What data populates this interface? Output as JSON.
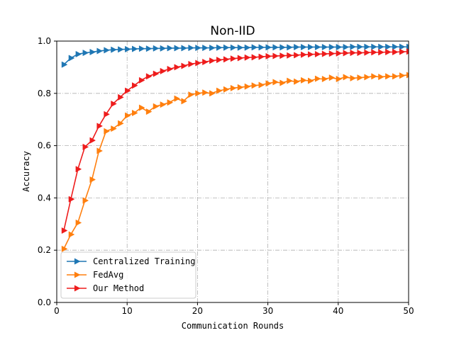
{
  "chart_data": {
    "type": "line",
    "title": "Non-IID",
    "xlabel": "Communication Rounds",
    "ylabel": "Accuracy",
    "xlim": [
      0,
      50
    ],
    "ylim": [
      0,
      1.0
    ],
    "xticks": [
      0,
      10,
      20,
      30,
      40,
      50
    ],
    "yticks": [
      0.0,
      0.2,
      0.4,
      0.6,
      0.8,
      1.0
    ],
    "xtick_labels": [
      "0",
      "10",
      "20",
      "30",
      "40",
      "50"
    ],
    "ytick_labels": [
      "0.0",
      "0.2",
      "0.4",
      "0.6",
      "0.8",
      "1.0"
    ],
    "grid": true,
    "legend_position": "lower-left",
    "marker": "right-triangle",
    "x": [
      1,
      2,
      3,
      4,
      5,
      6,
      7,
      8,
      9,
      10,
      11,
      12,
      13,
      14,
      15,
      16,
      17,
      18,
      19,
      20,
      21,
      22,
      23,
      24,
      25,
      26,
      27,
      28,
      29,
      30,
      31,
      32,
      33,
      34,
      35,
      36,
      37,
      38,
      39,
      40,
      41,
      42,
      43,
      44,
      45,
      46,
      47,
      48,
      49,
      50
    ],
    "series": [
      {
        "name": "Centralized Training",
        "color": "#1f77b4",
        "values": [
          0.91,
          0.935,
          0.95,
          0.955,
          0.958,
          0.962,
          0.965,
          0.967,
          0.968,
          0.969,
          0.97,
          0.971,
          0.971,
          0.972,
          0.972,
          0.973,
          0.973,
          0.973,
          0.974,
          0.974,
          0.974,
          0.974,
          0.975,
          0.975,
          0.975,
          0.975,
          0.975,
          0.976,
          0.976,
          0.976,
          0.976,
          0.976,
          0.976,
          0.977,
          0.977,
          0.977,
          0.977,
          0.977,
          0.977,
          0.977,
          0.977,
          0.978,
          0.978,
          0.978,
          0.978,
          0.978,
          0.978,
          0.978,
          0.978,
          0.978
        ]
      },
      {
        "name": "FedAvg",
        "color": "#ff7f0e",
        "values": [
          0.205,
          0.26,
          0.305,
          0.39,
          0.47,
          0.58,
          0.655,
          0.665,
          0.685,
          0.715,
          0.725,
          0.745,
          0.73,
          0.75,
          0.757,
          0.765,
          0.78,
          0.77,
          0.795,
          0.8,
          0.803,
          0.8,
          0.81,
          0.815,
          0.82,
          0.823,
          0.826,
          0.83,
          0.832,
          0.838,
          0.843,
          0.84,
          0.848,
          0.845,
          0.85,
          0.848,
          0.856,
          0.855,
          0.86,
          0.855,
          0.862,
          0.858,
          0.86,
          0.862,
          0.865,
          0.863,
          0.865,
          0.865,
          0.868,
          0.87
        ]
      },
      {
        "name": "Our Method",
        "color": "#ee1c1c",
        "values": [
          0.275,
          0.395,
          0.51,
          0.595,
          0.62,
          0.675,
          0.72,
          0.76,
          0.785,
          0.81,
          0.83,
          0.85,
          0.865,
          0.875,
          0.885,
          0.893,
          0.9,
          0.905,
          0.912,
          0.916,
          0.92,
          0.925,
          0.928,
          0.93,
          0.933,
          0.935,
          0.937,
          0.938,
          0.94,
          0.942,
          0.943,
          0.944,
          0.945,
          0.946,
          0.948,
          0.949,
          0.95,
          0.951,
          0.952,
          0.953,
          0.954,
          0.955,
          0.955,
          0.956,
          0.957,
          0.957,
          0.958,
          0.958,
          0.959,
          0.96
        ]
      }
    ]
  }
}
